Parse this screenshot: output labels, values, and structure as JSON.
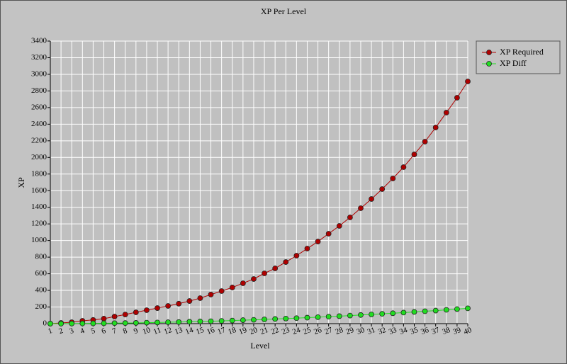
{
  "chart_data": {
    "type": "line",
    "title": "XP Per Level",
    "xlabel": "Level",
    "ylabel": "XP",
    "x": [
      1,
      2,
      3,
      4,
      5,
      6,
      7,
      8,
      9,
      10,
      11,
      12,
      13,
      14,
      15,
      16,
      17,
      18,
      19,
      20,
      21,
      22,
      23,
      24,
      25,
      26,
      27,
      28,
      29,
      30,
      31,
      32,
      33,
      34,
      35,
      36,
      37,
      38,
      39,
      40
    ],
    "xlim": [
      1,
      40
    ],
    "xticks": [
      1,
      2,
      3,
      4,
      5,
      6,
      7,
      8,
      9,
      10,
      11,
      12,
      13,
      14,
      15,
      16,
      17,
      18,
      19,
      20,
      21,
      22,
      23,
      24,
      25,
      26,
      27,
      28,
      29,
      30,
      31,
      32,
      33,
      34,
      35,
      36,
      37,
      38,
      39,
      40
    ],
    "ylim": [
      0,
      3400
    ],
    "yticks": [
      0,
      200,
      400,
      600,
      800,
      1000,
      1200,
      1400,
      1600,
      1800,
      2000,
      2200,
      2400,
      2600,
      2800,
      3000,
      3200,
      3400
    ],
    "grid": true,
    "legend": "outside-right",
    "series": [
      {
        "name": "XP Required",
        "color": "#b00000",
        "values": [
          0,
          8,
          17,
          34,
          45,
          60,
          85,
          110,
          136,
          162,
          187,
          213,
          240,
          272,
          307,
          350,
          392,
          435,
          486,
          537,
          605,
          665,
          741,
          818,
          903,
          988,
          1082,
          1176,
          1278,
          1389,
          1500,
          1619,
          1747,
          1883,
          2036,
          2190,
          2360,
          2539,
          2718,
          2914
        ]
      },
      {
        "name": "XP Diff",
        "color": "#22dd22",
        "values": [
          0,
          0,
          1,
          2,
          3,
          4,
          6,
          7,
          9,
          12,
          14,
          17,
          19,
          23,
          26,
          29,
          33,
          37,
          42,
          46,
          51,
          56,
          61,
          66,
          72,
          78,
          84,
          90,
          97,
          104,
          111,
          118,
          125,
          133,
          141,
          149,
          157,
          166,
          175,
          184
        ]
      }
    ]
  }
}
